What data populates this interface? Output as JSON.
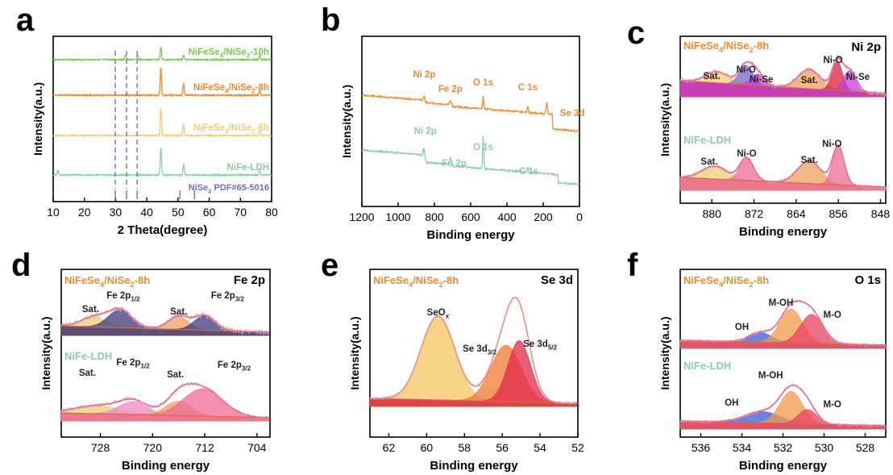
{
  "colors": {
    "green": "#7dc855",
    "orange": "#f08a2c",
    "yellow": "#f2cc73",
    "teal": "#8ccca8",
    "purple": "#7b66c9",
    "grey": "#b9b9b9",
    "pink": "#ef6b94",
    "magenta": "#c13fd8",
    "red": "#d8203c",
    "brown": "#c86f52",
    "blue": "#3a59d9",
    "navy": "#3e3a78"
  },
  "panels": {
    "a": {
      "letter": "a",
      "xlabel": "2 Theta(degree)",
      "ylabel": "Intensity(a.u.)",
      "xticks": [
        "10",
        "20",
        "30",
        "40",
        "50",
        "60",
        "70",
        "80"
      ],
      "series": [
        "NiFeSe4/NiSe2-10h",
        "NiFeSe4/NiSe2-8h",
        "NiFeSe4/NiSe2-6h",
        "NiFe-LDH"
      ],
      "reference": "NiSe2 PDF#65-5016"
    },
    "b": {
      "letter": "b",
      "xlabel": "Binding energy",
      "ylabel": "Intensity(a.u.)",
      "xticks": [
        "1200",
        "1000",
        "800",
        "600",
        "400",
        "200",
        "0"
      ],
      "top_peaks": [
        "Ni 2p",
        "Fe 2p",
        "O 1s",
        "C 1s",
        "Se 3d"
      ],
      "bottom_peaks": [
        "Ni 2p",
        "Fe 2p",
        "O 1s",
        "C 1s"
      ]
    },
    "c": {
      "letter": "c",
      "region": "Ni 2p",
      "xlabel": "Binding energy",
      "ylabel": "Intensity(a.u.)",
      "xticks": [
        "880",
        "872",
        "864",
        "856",
        "848"
      ],
      "top_label": "NiFeSe4/NiSe2-8h",
      "bottom_label": "NiFe-LDH",
      "top_peaks": [
        "Sat.",
        "Ni-O",
        "Ni-Se",
        "Sat.",
        "Ni-O",
        "Ni-Se"
      ],
      "bottom_peaks": [
        "Sat.",
        "Ni-O",
        "Sat.",
        "Ni-O"
      ]
    },
    "d": {
      "letter": "d",
      "region": "Fe 2p",
      "xlabel": "Binding energy",
      "ylabel": "Intensity(a.u.)",
      "xticks": [
        "728",
        "720",
        "712",
        "704"
      ],
      "top_label": "NiFeSe4/NiSe2-8h",
      "bottom_label": "NiFe-LDH",
      "top_peaks": [
        "Sat.",
        "Fe 2p1/2",
        "Sat.",
        "Fe 2p3/2"
      ],
      "bottom_peaks": [
        "Sat.",
        "Fe 2p1/2",
        "Sat.",
        "Fe 2p3/2"
      ]
    },
    "e": {
      "letter": "e",
      "region": "Se 3d",
      "xlabel": "Binding energy",
      "ylabel": "Intensity(a.u.)",
      "xticks": [
        "62",
        "60",
        "58",
        "56",
        "54",
        "52"
      ],
      "top_label": "NiFeSe4/NiSe2-8h",
      "peaks": [
        "SeOx",
        "Se 3d3/2",
        "Se 3d5/2"
      ]
    },
    "f": {
      "letter": "f",
      "region": "O 1s",
      "xlabel": "Binding energy",
      "ylabel": "Intensity(a.u.)",
      "xticks": [
        "536",
        "534",
        "532",
        "530",
        "528"
      ],
      "top_label": "NiFeSe4/NiSe2-8h",
      "bottom_label": "NiFe-LDH",
      "top_peaks": [
        "OH",
        "M-OH",
        "M-O"
      ],
      "bottom_peaks": [
        "OH",
        "M-OH",
        "M-O"
      ]
    }
  },
  "chart_data": [
    {
      "type": "line",
      "panel": "a",
      "xlabel": "2 Theta(degree)",
      "ylabel": "Intensity(a.u.)",
      "xlim": [
        10,
        80
      ],
      "series": [
        {
          "name": "NiFeSe4/NiSe2-10h",
          "peaks": [
            33.2,
            37.0,
            44.5,
            51.8,
            76.2
          ]
        },
        {
          "name": "NiFeSe4/NiSe2-8h",
          "peaks": [
            44.5,
            51.8,
            76.2
          ]
        },
        {
          "name": "NiFeSe4/NiSe2-6h",
          "peaks": [
            44.5,
            51.8,
            76.2
          ]
        },
        {
          "name": "NiFe-LDH",
          "peaks": [
            11.5,
            44.5,
            51.8,
            76.2
          ]
        }
      ],
      "reference": {
        "name": "NiSe2 PDF#65-5016",
        "lines": [
          29.9,
          33.5,
          36.9,
          50.6,
          55.3
        ]
      }
    },
    {
      "type": "line",
      "panel": "b",
      "xlabel": "Binding energy",
      "ylabel": "Intensity(a.u.)",
      "xlim": [
        1200,
        0
      ],
      "series": [
        {
          "name": "NiFeSe4/NiSe2-8h",
          "peaks": {
            "Ni 2p": 856,
            "Fe 2p": 712,
            "O 1s": 531,
            "C 1s": 285,
            "Se 3d": 55
          }
        },
        {
          "name": "NiFe-LDH",
          "peaks": {
            "Ni 2p": 856,
            "Fe 2p": 712,
            "O 1s": 531,
            "C 1s": 285
          }
        }
      ]
    },
    {
      "type": "line",
      "panel": "c",
      "title": "Ni 2p",
      "xlabel": "Binding energy",
      "ylabel": "Intensity(a.u.)",
      "xlim": [
        886,
        847
      ],
      "series": [
        {
          "name": "NiFeSe4/NiSe2-8h",
          "components": [
            {
              "label": "Sat.",
              "center": 879.0
            },
            {
              "label": "Ni-O",
              "center": 873.5
            },
            {
              "label": "Ni-Se",
              "center": 871.3
            },
            {
              "label": "Sat.",
              "center": 861.5
            },
            {
              "label": "Ni-O",
              "center": 856.2
            },
            {
              "label": "Ni-Se",
              "center": 853.8
            }
          ]
        },
        {
          "name": "NiFe-LDH",
          "components": [
            {
              "label": "Sat.",
              "center": 879.5
            },
            {
              "label": "Ni-O",
              "center": 873.4
            },
            {
              "label": "Sat.",
              "center": 861.5
            },
            {
              "label": "Ni-O",
              "center": 856.0
            }
          ]
        }
      ]
    },
    {
      "type": "line",
      "panel": "d",
      "title": "Fe 2p",
      "xlabel": "Binding energy",
      "ylabel": "Intensity(a.u.)",
      "xlim": [
        734,
        702
      ],
      "series": [
        {
          "name": "NiFeSe4/NiSe2-8h",
          "components": [
            {
              "label": "Sat.",
              "center": 729.0
            },
            {
              "label": "Fe 2p1/2",
              "center": 725.0
            },
            {
              "label": "Sat.",
              "center": 716.0
            },
            {
              "label": "Fe 2p3/2",
              "center": 712.0
            }
          ]
        },
        {
          "name": "NiFe-LDH",
          "components": [
            {
              "label": "Sat.",
              "center": 728.5
            },
            {
              "label": "Fe 2p1/2",
              "center": 723.0
            },
            {
              "label": "Sat.",
              "center": 716.0
            },
            {
              "label": "Fe 2p3/2",
              "center": 712.3
            }
          ]
        }
      ]
    },
    {
      "type": "line",
      "panel": "e",
      "title": "Se 3d",
      "xlabel": "Binding energy",
      "ylabel": "Intensity(a.u.)",
      "xlim": [
        63,
        52
      ],
      "series": [
        {
          "name": "NiFeSe4/NiSe2-8h",
          "components": [
            {
              "label": "SeOx",
              "center": 59.4
            },
            {
              "label": "Se 3d3/2",
              "center": 55.8
            },
            {
              "label": "Se 3d5/2",
              "center": 55.1
            }
          ]
        }
      ]
    },
    {
      "type": "line",
      "panel": "f",
      "title": "O 1s",
      "xlabel": "Binding energy",
      "ylabel": "Intensity(a.u.)",
      "xlim": [
        537,
        527
      ],
      "series": [
        {
          "name": "NiFeSe4/NiSe2-8h",
          "components": [
            {
              "label": "OH",
              "center": 533.1
            },
            {
              "label": "M-OH",
              "center": 531.6
            },
            {
              "label": "M-O",
              "center": 530.6
            }
          ]
        },
        {
          "name": "NiFe-LDH",
          "components": [
            {
              "label": "OH",
              "center": 533.0
            },
            {
              "label": "M-OH",
              "center": 531.6
            },
            {
              "label": "M-O",
              "center": 530.8
            }
          ]
        }
      ]
    }
  ]
}
